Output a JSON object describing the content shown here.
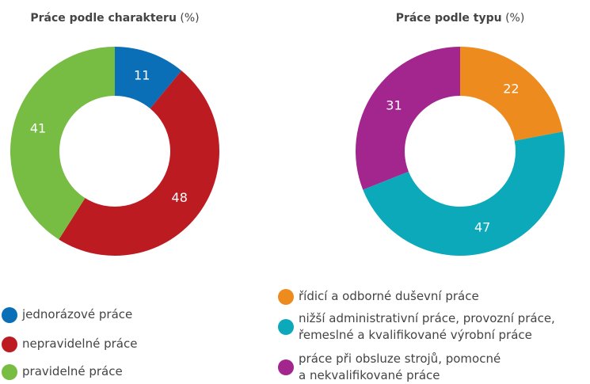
{
  "chart_data": [
    {
      "type": "donut",
      "title": "Práce podle charakteru",
      "unit": "(%)",
      "categories": [
        "jednorázové práce",
        "nepravidelné práce",
        "pravidelné práce"
      ],
      "values": [
        11,
        48,
        41
      ],
      "colors": [
        "#0b6fb8",
        "#bd1b22",
        "#77bc43"
      ]
    },
    {
      "type": "donut",
      "title": "Práce podle typu",
      "unit": "(%)",
      "categories": [
        "řídicí a odborné duševní práce",
        "nižší administrativní práce, provozní práce, řemeslné a kvalifikované výrobní práce",
        "práce při obsluze strojů, pomocné a nekvalifikované práce"
      ],
      "values": [
        22,
        47,
        31
      ],
      "colors": [
        "#ee8b1e",
        "#0ba9ba",
        "#a3268f"
      ]
    }
  ]
}
